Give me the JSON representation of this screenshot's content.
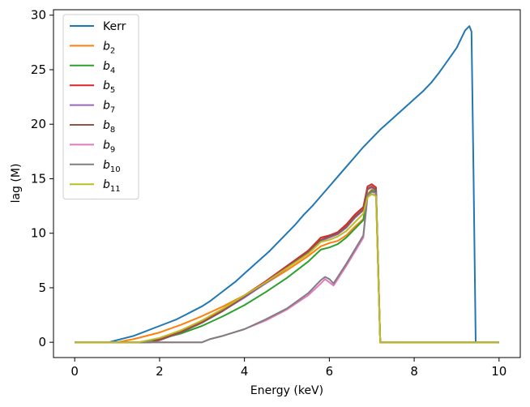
{
  "chart_data": {
    "type": "line",
    "title": "",
    "xlabel": "Energy (keV)",
    "ylabel": "lag (M)",
    "xlim": [
      -0.5,
      10.5
    ],
    "ylim": [
      -1.4,
      30.5
    ],
    "xticks": [
      0,
      2,
      4,
      6,
      8,
      10
    ],
    "yticks": [
      0,
      5,
      10,
      15,
      20,
      25,
      30
    ],
    "legend_position": "top-left",
    "series": [
      {
        "name": "Kerr",
        "label_main": "Kerr",
        "label_sub": "",
        "color": "#1f77b4",
        "x": [
          0.0,
          0.8,
          1.0,
          1.2,
          1.4,
          1.6,
          1.8,
          2.0,
          2.2,
          2.4,
          2.6,
          2.8,
          3.0,
          3.2,
          3.4,
          3.6,
          3.8,
          4.0,
          4.2,
          4.4,
          4.6,
          4.8,
          5.0,
          5.2,
          5.4,
          5.6,
          5.8,
          6.0,
          6.2,
          6.4,
          6.6,
          6.8,
          7.0,
          7.2,
          7.4,
          7.6,
          7.8,
          8.0,
          8.2,
          8.4,
          8.6,
          8.8,
          9.0,
          9.1,
          9.2,
          9.3,
          9.35,
          9.4,
          9.45,
          10.0
        ],
        "y": [
          0.0,
          0.0,
          0.2,
          0.4,
          0.6,
          0.9,
          1.2,
          1.5,
          1.8,
          2.1,
          2.5,
          2.9,
          3.3,
          3.8,
          4.4,
          5.0,
          5.6,
          6.3,
          7.0,
          7.7,
          8.4,
          9.2,
          10.0,
          10.8,
          11.7,
          12.5,
          13.4,
          14.3,
          15.2,
          16.1,
          17.0,
          17.9,
          18.7,
          19.5,
          20.2,
          20.9,
          21.6,
          22.3,
          23.0,
          23.8,
          24.8,
          25.9,
          27.0,
          27.8,
          28.6,
          29.0,
          28.5,
          15.0,
          0.0,
          0.0
        ]
      },
      {
        "name": "b2",
        "label_main": "b",
        "label_sub": "2",
        "color": "#ff7f0e",
        "x": [
          0.0,
          1.0,
          1.4,
          2.0,
          2.5,
          3.0,
          3.5,
          4.0,
          4.5,
          5.0,
          5.5,
          5.8,
          6.0,
          6.2,
          6.4,
          6.6,
          6.8,
          6.9,
          7.0,
          7.1,
          7.2,
          7.4,
          8.0,
          10.0
        ],
        "y": [
          0.0,
          0.0,
          0.3,
          0.9,
          1.6,
          2.4,
          3.3,
          4.3,
          5.4,
          6.6,
          7.9,
          8.8,
          9.1,
          9.3,
          9.8,
          10.6,
          11.3,
          13.6,
          14.0,
          13.9,
          0.0,
          0.0,
          0.0,
          0.0
        ]
      },
      {
        "name": "b4",
        "label_main": "b",
        "label_sub": "4",
        "color": "#2ca02c",
        "x": [
          0.0,
          1.5,
          2.0,
          2.5,
          3.0,
          3.5,
          4.0,
          4.5,
          5.0,
          5.5,
          5.8,
          6.0,
          6.2,
          6.4,
          6.6,
          6.8,
          6.9,
          7.0,
          7.1,
          7.2,
          7.4,
          8.0,
          10.0
        ],
        "y": [
          0.0,
          0.0,
          0.3,
          0.8,
          1.5,
          2.4,
          3.4,
          4.6,
          5.9,
          7.4,
          8.5,
          8.7,
          9.0,
          9.6,
          10.4,
          11.2,
          13.5,
          13.9,
          13.8,
          0.0,
          0.0,
          0.0,
          0.0
        ]
      },
      {
        "name": "b5",
        "label_main": "b",
        "label_sub": "5",
        "color": "#d62728",
        "x": [
          0.0,
          1.8,
          2.0,
          2.5,
          3.0,
          3.5,
          4.0,
          4.5,
          5.0,
          5.5,
          5.8,
          6.0,
          6.2,
          6.4,
          6.6,
          6.8,
          6.9,
          7.0,
          7.1,
          7.2,
          7.4,
          8.0,
          10.0
        ],
        "y": [
          0.0,
          0.0,
          0.3,
          1.0,
          1.9,
          3.0,
          4.3,
          5.6,
          7.0,
          8.4,
          9.6,
          9.8,
          10.1,
          10.8,
          11.7,
          12.4,
          14.3,
          14.5,
          14.2,
          0.0,
          0.0,
          0.0,
          0.0
        ]
      },
      {
        "name": "b7",
        "label_main": "b",
        "label_sub": "7",
        "color": "#9467bd",
        "x": [
          0.0,
          1.8,
          2.0,
          2.5,
          3.0,
          3.5,
          4.0,
          4.5,
          5.0,
          5.5,
          5.8,
          6.0,
          6.2,
          6.4,
          6.6,
          6.8,
          6.9,
          7.0,
          7.1,
          7.2,
          7.4,
          8.0,
          10.0
        ],
        "y": [
          0.0,
          0.0,
          0.2,
          0.9,
          1.8,
          2.9,
          4.1,
          5.4,
          6.8,
          8.2,
          9.3,
          9.6,
          9.9,
          10.5,
          11.4,
          12.1,
          14.0,
          14.2,
          13.9,
          0.0,
          0.0,
          0.0,
          0.0
        ]
      },
      {
        "name": "b8",
        "label_main": "b",
        "label_sub": "8",
        "color": "#8c564b",
        "x": [
          0.0,
          1.8,
          2.0,
          2.5,
          3.0,
          3.5,
          4.0,
          4.5,
          5.0,
          5.5,
          5.8,
          6.0,
          6.2,
          6.4,
          6.6,
          6.8,
          6.9,
          7.0,
          7.1,
          7.2,
          7.4,
          8.0,
          10.0
        ],
        "y": [
          0.0,
          0.0,
          0.2,
          0.9,
          1.8,
          2.9,
          4.2,
          5.5,
          6.9,
          8.3,
          9.4,
          9.7,
          10.0,
          10.6,
          11.5,
          12.2,
          14.1,
          14.3,
          14.0,
          0.0,
          0.0,
          0.0,
          0.0
        ]
      },
      {
        "name": "b9",
        "label_main": "b",
        "label_sub": "9",
        "color": "#e377c2",
        "x": [
          0.0,
          3.0,
          3.2,
          3.5,
          4.0,
          4.5,
          5.0,
          5.5,
          5.8,
          5.9,
          6.0,
          6.1,
          6.2,
          6.4,
          6.6,
          6.8,
          6.9,
          7.0,
          7.1,
          7.2,
          7.4,
          8.0,
          10.0
        ],
        "y": [
          0.0,
          0.0,
          0.3,
          0.6,
          1.2,
          2.0,
          3.0,
          4.3,
          5.4,
          5.8,
          5.5,
          5.2,
          5.8,
          7.0,
          8.3,
          9.6,
          13.3,
          13.6,
          13.5,
          0.0,
          0.0,
          0.0,
          0.0
        ]
      },
      {
        "name": "b10",
        "label_main": "b",
        "label_sub": "10",
        "color": "#7f7f7f",
        "x": [
          0.0,
          3.0,
          3.2,
          3.5,
          4.0,
          4.5,
          5.0,
          5.5,
          5.8,
          5.9,
          6.0,
          6.1,
          6.2,
          6.4,
          6.6,
          6.8,
          6.9,
          7.0,
          7.1,
          7.2,
          7.4,
          8.0,
          10.0
        ],
        "y": [
          0.0,
          0.0,
          0.3,
          0.6,
          1.2,
          2.1,
          3.1,
          4.5,
          5.7,
          6.0,
          5.8,
          5.4,
          6.0,
          7.2,
          8.5,
          9.8,
          13.5,
          13.8,
          13.7,
          0.0,
          0.0,
          0.0,
          0.0
        ]
      },
      {
        "name": "b11",
        "label_main": "b",
        "label_sub": "11",
        "color": "#bcbd22",
        "x": [
          0.0,
          1.5,
          2.0,
          2.5,
          3.0,
          3.5,
          4.0,
          4.5,
          5.0,
          5.5,
          5.8,
          6.0,
          6.2,
          6.4,
          6.6,
          6.8,
          6.9,
          7.0,
          7.1,
          7.2,
          7.4,
          8.0,
          10.0
        ],
        "y": [
          0.0,
          0.0,
          0.4,
          1.1,
          2.0,
          3.1,
          4.3,
          5.5,
          6.8,
          8.1,
          9.2,
          9.4,
          9.7,
          10.2,
          11.0,
          11.8,
          13.3,
          13.6,
          13.4,
          0.0,
          0.0,
          0.0,
          0.0
        ]
      }
    ]
  }
}
